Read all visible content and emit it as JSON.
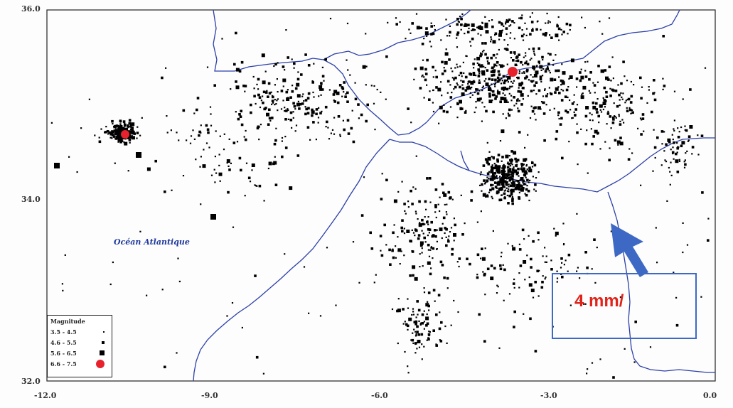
{
  "map": {
    "axes": {
      "y_ticks": [
        {
          "label": "36.0",
          "value": 36.0
        },
        {
          "label": "34.0",
          "value": 34.0
        },
        {
          "label": "32.0",
          "value": 32.0
        }
      ],
      "x_ticks": [
        {
          "label": "-12.0",
          "value": -12.0
        },
        {
          "label": "-9.0",
          "value": -9.0
        },
        {
          "label": "-6.0",
          "value": -6.0
        },
        {
          "label": "-3.0",
          "value": -3.0
        },
        {
          "label": "0.0",
          "value": 0.0
        }
      ]
    },
    "ocean_label": "Océan Atlantique",
    "legend": {
      "title": "Magnitude",
      "entries": [
        {
          "range": "3.5 - 4.5",
          "symbol": "tiny-dot"
        },
        {
          "range": "4.6 - 5.5",
          "symbol": "small-square"
        },
        {
          "range": "5.6 - 6.5",
          "symbol": "medium-square"
        },
        {
          "range": "6.6 - 7.5",
          "symbol": "large-red-circle"
        }
      ]
    },
    "annotation": {
      "velocity_text": "4 mm/",
      "arrow_icon": "arrow-up-left-icon"
    },
    "colors": {
      "coastline": "#2b3fa8",
      "events": "#000000",
      "major_events": "#e8222c",
      "annotation_box": "#3d69c4",
      "annotation_text": "#e2231a",
      "arrow": "#3d69c4"
    }
  }
}
